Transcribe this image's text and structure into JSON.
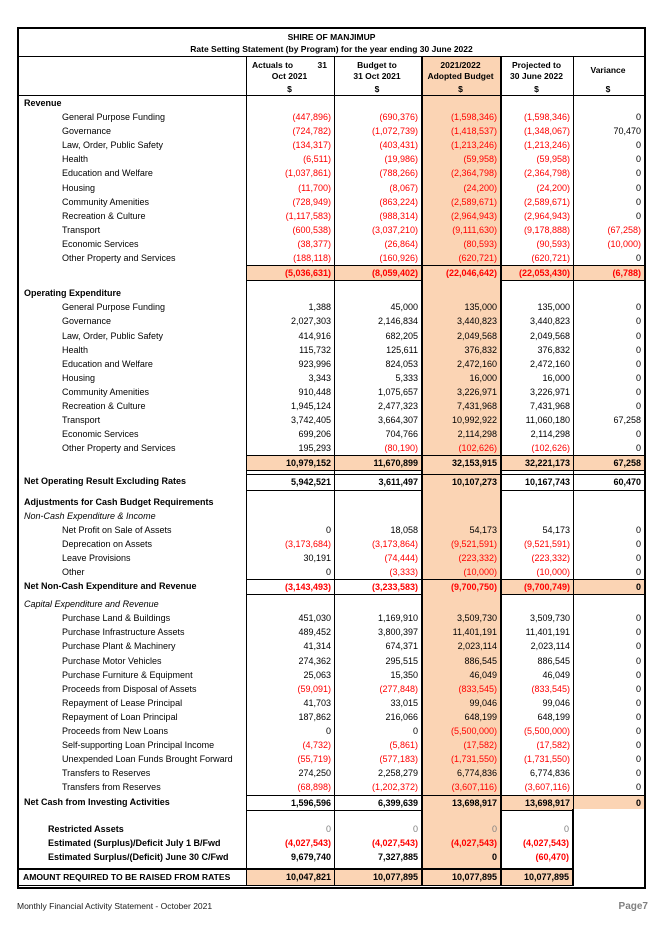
{
  "colors": {
    "highlight": "#FBD4B4",
    "negative": "#FF0000",
    "muted": "#808080"
  },
  "header": {
    "title": "SHIRE OF MANJIMUP",
    "subtitle": "Rate Setting Statement (by Program) for the year ending 30 June 2022",
    "columns": [
      {
        "line1a": "Actuals to",
        "line1b": "31",
        "line2": "Oct 2021",
        "unit": "$"
      },
      {
        "line1": "Budget to",
        "line2": "31 Oct 2021",
        "unit": "$"
      },
      {
        "line1": "2021/2022",
        "line2": "Adopted Budget",
        "unit": "$",
        "highlight": true
      },
      {
        "line1": "Projected to",
        "line2": "30 June 2022",
        "unit": "$"
      },
      {
        "line1": "Variance",
        "line2": "",
        "unit": "$"
      }
    ]
  },
  "table": {
    "rows": [
      {
        "style": "section",
        "label": "Revenue"
      },
      {
        "style": "item",
        "label": "General Purpose Funding",
        "values": [
          "(447,896)",
          "(690,376)",
          "(1,598,346)",
          "(1,598,346)",
          "0"
        ]
      },
      {
        "style": "item",
        "label": "Governance",
        "values": [
          "(724,782)",
          "(1,072,739)",
          "(1,418,537)",
          "(1,348,067)",
          "70,470"
        ]
      },
      {
        "style": "item",
        "label": "Law, Order, Public Safety",
        "values": [
          "(134,317)",
          "(403,431)",
          "(1,213,246)",
          "(1,213,246)",
          "0"
        ]
      },
      {
        "style": "item",
        "label": "Health",
        "values": [
          "(6,511)",
          "(19,986)",
          "(59,958)",
          "(59,958)",
          "0"
        ]
      },
      {
        "style": "item",
        "label": "Education and Welfare",
        "values": [
          "(1,037,861)",
          "(788,266)",
          "(2,364,798)",
          "(2,364,798)",
          "0"
        ]
      },
      {
        "style": "item",
        "label": "Housing",
        "values": [
          "(11,700)",
          "(8,067)",
          "(24,200)",
          "(24,200)",
          "0"
        ]
      },
      {
        "style": "item",
        "label": "Community Amenities",
        "values": [
          "(728,949)",
          "(863,224)",
          "(2,589,671)",
          "(2,589,671)",
          "0"
        ]
      },
      {
        "style": "item",
        "label": "Recreation & Culture",
        "values": [
          "(1,117,583)",
          "(988,314)",
          "(2,964,943)",
          "(2,964,943)",
          "0"
        ]
      },
      {
        "style": "item",
        "label": "Transport",
        "values": [
          "(600,538)",
          "(3,037,210)",
          "(9,111,630)",
          "(9,178,888)",
          "(67,258)"
        ]
      },
      {
        "style": "item",
        "label": "Economic Services",
        "values": [
          "(38,377)",
          "(26,864)",
          "(80,593)",
          "(90,593)",
          "(10,000)"
        ]
      },
      {
        "style": "item",
        "label": "Other Property and Services",
        "values": [
          "(188,118)",
          "(160,926)",
          "(620,721)",
          "(620,721)",
          "0"
        ]
      },
      {
        "style": "total",
        "label": "",
        "values": [
          "(5,036,631)",
          "(8,059,402)",
          "(22,046,642)",
          "(22,053,430)",
          "(6,788)"
        ]
      },
      {
        "style": "blank",
        "h": 7
      },
      {
        "style": "section",
        "label": "Operating Expenditure"
      },
      {
        "style": "item",
        "label": "General Purpose Funding",
        "values": [
          "1,388",
          "45,000",
          "135,000",
          "135,000",
          "0"
        ]
      },
      {
        "style": "item",
        "label": "Governance",
        "values": [
          "2,027,303",
          "2,146,834",
          "3,440,823",
          "3,440,823",
          "0"
        ]
      },
      {
        "style": "item",
        "label": "Law, Order, Public Safety",
        "values": [
          "414,916",
          "682,205",
          "2,049,568",
          "2,049,568",
          "0"
        ]
      },
      {
        "style": "item",
        "label": "Health",
        "values": [
          "115,732",
          "125,611",
          "376,832",
          "376,832",
          "0"
        ]
      },
      {
        "style": "item",
        "label": "Education and Welfare",
        "values": [
          "923,996",
          "824,053",
          "2,472,160",
          "2,472,160",
          "0"
        ]
      },
      {
        "style": "item",
        "label": "Housing",
        "values": [
          "3,343",
          "5,333",
          "16,000",
          "16,000",
          "0"
        ]
      },
      {
        "style": "item",
        "label": "Community Amenities",
        "values": [
          "910,448",
          "1,075,657",
          "3,226,971",
          "3,226,971",
          "0"
        ]
      },
      {
        "style": "item",
        "label": "Recreation & Culture",
        "values": [
          "1,945,124",
          "2,477,323",
          "7,431,968",
          "7,431,968",
          "0"
        ]
      },
      {
        "style": "item",
        "label": "Transport",
        "values": [
          "3,742,405",
          "3,664,307",
          "10,992,922",
          "11,060,180",
          "67,258"
        ]
      },
      {
        "style": "item",
        "label": "Economic Services",
        "values": [
          "699,206",
          "704,766",
          "2,114,298",
          "2,114,298",
          "0"
        ]
      },
      {
        "style": "item",
        "label": "Other Property and Services",
        "values": [
          "195,293",
          "(80,190)",
          "(102,626)",
          "(102,626)",
          "0"
        ]
      },
      {
        "style": "total",
        "label": "",
        "values": [
          "10,979,152",
          "11,670,899",
          "32,153,915",
          "32,221,173",
          "67,258"
        ]
      },
      {
        "style": "blank",
        "h": 5
      },
      {
        "style": "net",
        "peach": "adopted",
        "label": "Net Operating Result Excluding Rates",
        "values": [
          "5,942,521",
          "3,611,497",
          "10,107,273",
          "10,167,743",
          "60,470"
        ]
      },
      {
        "style": "blank",
        "h": 6
      },
      {
        "style": "section",
        "label": "Adjustments for Cash Budget Requirements"
      },
      {
        "style": "italic",
        "label": "Non-Cash Expenditure & Income"
      },
      {
        "style": "item",
        "label": "Net  Profit on Sale of Assets",
        "values": [
          "0",
          "18,058",
          "54,173",
          "54,173",
          "0"
        ]
      },
      {
        "style": "item",
        "label": "Deprecation on Assets",
        "values": [
          "(3,173,684)",
          "(3,173,864)",
          "(9,521,591)",
          "(9,521,591)",
          "0"
        ]
      },
      {
        "style": "item",
        "label": "Leave Provisions",
        "values": [
          "30,191",
          "(74,444)",
          "(223,332)",
          "(223,332)",
          "0"
        ]
      },
      {
        "style": "item",
        "label": "Other",
        "values": [
          "0",
          "(3,333)",
          "(10,000)",
          "(10,000)",
          "0"
        ]
      },
      {
        "style": "net",
        "peach": "apv",
        "label": "Net Non-Cash Expenditure and Revenue",
        "values": [
          "(3,143,493)",
          "(3,233,583)",
          "(9,700,750)",
          "(9,700,749)",
          "0"
        ]
      },
      {
        "style": "blank",
        "h": 4
      },
      {
        "style": "italic",
        "label": "Capital Expenditure and Revenue"
      },
      {
        "style": "item",
        "label": "Purchase Land & Buildings",
        "values": [
          "451,030",
          "1,169,910",
          "3,509,730",
          "3,509,730",
          "0"
        ]
      },
      {
        "style": "item",
        "label": "Purchase Infrastructure Assets",
        "values": [
          "489,452",
          "3,800,397",
          "11,401,191",
          "11,401,191",
          "0"
        ]
      },
      {
        "style": "item",
        "label": "Purchase Plant & Machinery",
        "values": [
          "41,314",
          "674,371",
          "2,023,114",
          "2,023,114",
          "0"
        ]
      },
      {
        "style": "item",
        "label": "Purchase Motor Vehicles",
        "values": [
          "274,362",
          "295,515",
          "886,545",
          "886,545",
          "0"
        ]
      },
      {
        "style": "item",
        "label": "Purchase Furniture & Equipment",
        "values": [
          "25,063",
          "15,350",
          "46,049",
          "46,049",
          "0"
        ]
      },
      {
        "style": "item",
        "label": "Proceeds from Disposal of Assets",
        "values": [
          "(59,091)",
          "(277,848)",
          "(833,545)",
          "(833,545)",
          "0"
        ]
      },
      {
        "style": "item",
        "label": "Repayment of Lease Principal",
        "values": [
          "41,703",
          "33,015",
          "99,046",
          "99,046",
          "0"
        ]
      },
      {
        "style": "item",
        "label": "Repayment of Loan Principal",
        "values": [
          "187,862",
          "216,066",
          "648,199",
          "648,199",
          "0"
        ]
      },
      {
        "style": "item",
        "label": "Proceeds from New Loans",
        "values": [
          "0",
          "0",
          "(5,500,000)",
          "(5,500,000)",
          "0"
        ]
      },
      {
        "style": "item",
        "label": "Self-supporting Loan Principal Income",
        "values": [
          "(4,732)",
          "(5,861)",
          "(17,582)",
          "(17,582)",
          "0"
        ]
      },
      {
        "style": "item",
        "label": "Unexpended Loan Funds Brought Forward",
        "values": [
          "(55,719)",
          "(577,183)",
          "(1,731,550)",
          "(1,731,550)",
          "0"
        ]
      },
      {
        "style": "item",
        "label": "Transfers to Reserves",
        "values": [
          "274,250",
          "2,258,279",
          "6,774,836",
          "6,774,836",
          "0"
        ]
      },
      {
        "style": "item",
        "label": "Transfers from Reserves",
        "values": [
          "(68,898)",
          "(1,202,372)",
          "(3,607,116)",
          "(3,607,116)",
          "0"
        ]
      },
      {
        "style": "net",
        "peach": "apv",
        "label": "Net Cash from Investing Activities",
        "values": [
          "1,596,596",
          "6,399,639",
          "13,698,917",
          "13,698,917",
          "0"
        ]
      },
      {
        "style": "blank",
        "h": 13,
        "novar": true
      },
      {
        "style": "sub2",
        "label": "Restricted Assets",
        "values": [
          "0",
          "0",
          "0",
          "0",
          ""
        ],
        "gray": true,
        "novar": true
      },
      {
        "style": "sub2",
        "label": "Estimated (Surplus)/Deficit July 1 B/Fwd",
        "values": [
          "(4,027,543)",
          "(4,027,543)",
          "(4,027,543)",
          "(4,027,543)",
          ""
        ],
        "bold": true,
        "novar": true
      },
      {
        "style": "sub2",
        "label": "Estimated Surplus/(Deficit) June 30 C/Fwd",
        "values": [
          "9,679,740",
          "7,327,885",
          "0",
          "(60,470)",
          ""
        ],
        "bold": true,
        "novar": true
      },
      {
        "style": "blank",
        "h": 4,
        "novar": true
      },
      {
        "style": "final",
        "label": "AMOUNT REQUIRED TO BE RAISED FROM RATES",
        "values": [
          "10,047,821",
          "10,077,895",
          "10,077,895",
          "10,077,895",
          ""
        ],
        "novar": true
      }
    ]
  },
  "footer": {
    "left": "Monthly Financial Activity Statement - October 2021",
    "right": "Page7"
  }
}
